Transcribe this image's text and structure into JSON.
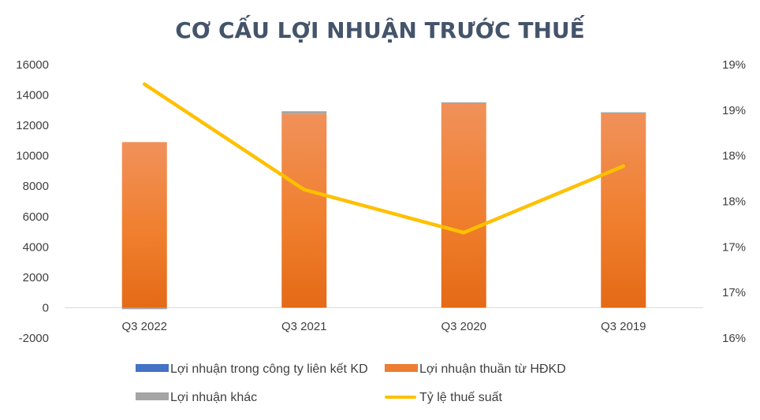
{
  "chart_data": {
    "type": "bar",
    "title": "CƠ CẤU LỢI NHUẬN TRƯỚC THUẾ",
    "categories": [
      "Q3 2022",
      "Q3 2021",
      "Q3 2020",
      "Q3 2019"
    ],
    "series": [
      {
        "name": "Lợi nhuận trong công ty liên kết KD",
        "type": "bar",
        "axis": "left",
        "color": "#4472c4",
        "values": [
          0,
          0,
          0,
          0
        ]
      },
      {
        "name": "Lợi nhuận thuần từ HĐKD",
        "type": "bar",
        "axis": "left",
        "color": "#ed7d31",
        "values": [
          10900,
          12750,
          13500,
          12850
        ]
      },
      {
        "name": "Lợi nhuận khác",
        "type": "bar",
        "axis": "left",
        "color": "#a5a5a5",
        "values": [
          -100,
          180,
          20,
          10
        ]
      },
      {
        "name": "Tỷ lệ thuế suất",
        "type": "line",
        "axis": "right",
        "color": "#ffc000",
        "values": [
          19.25,
          17.9,
          17.35,
          18.2
        ]
      }
    ],
    "y_left": {
      "min": -2000,
      "max": 16000,
      "ticks": [
        "-2000",
        "0",
        "2000",
        "4000",
        "6000",
        "8000",
        "10000",
        "12000",
        "14000",
        "16000"
      ]
    },
    "y_right": {
      "min": 16.0,
      "max": 19.5,
      "ticks": [
        "16%",
        "17%",
        "17%",
        "18%",
        "18%",
        "19%",
        "19%"
      ]
    },
    "legend": "bottom",
    "grid": false
  }
}
